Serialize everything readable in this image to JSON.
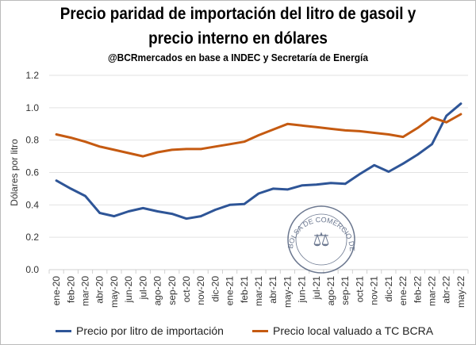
{
  "chart_data": {
    "type": "line",
    "title": "Precio paridad de importación del litro de gasoil y",
    "title_line2": "precio interno en dólares",
    "subtitle": "@BCRmercados en base a INDEC y Secretaría de Energía",
    "xlabel": "",
    "ylabel": "Dólares por litro",
    "ylim": [
      0,
      1.2
    ],
    "yticks": [
      "0.0",
      "0.2",
      "0.4",
      "0.6",
      "0.8",
      "1.0",
      "1.2"
    ],
    "grid": true,
    "legend_position": "bottom",
    "watermark": "BOLSA DE COMERCIO DE ROSARIO",
    "categories": [
      "ene-20",
      "feb-20",
      "mar-20",
      "abr-20",
      "may-20",
      "jun-20",
      "jul-20",
      "ago-20",
      "sep-20",
      "oct-20",
      "nov-20",
      "dic-20",
      "ene-21",
      "feb-21",
      "mar-21",
      "abr-21",
      "may-21",
      "jun-21",
      "jul-21",
      "ago-21",
      "sep-21",
      "oct-21",
      "nov-21",
      "dic-21",
      "ene-22",
      "feb-22",
      "mar-22",
      "abr-22",
      "may-22"
    ],
    "series": [
      {
        "name": "Precio por litro de importación",
        "color": "#2E5597",
        "values": [
          0.55,
          0.5,
          0.455,
          0.35,
          0.33,
          0.36,
          0.38,
          0.36,
          0.345,
          0.315,
          0.33,
          0.37,
          0.4,
          0.405,
          0.47,
          0.5,
          0.495,
          0.52,
          0.525,
          0.535,
          0.53,
          0.59,
          0.645,
          0.605,
          0.655,
          0.71,
          0.775,
          0.95,
          1.025
        ]
      },
      {
        "name": "Precio local valuado a TC BCRA",
        "color": "#C55A11",
        "values": [
          0.835,
          0.815,
          0.79,
          0.76,
          0.74,
          0.72,
          0.7,
          0.725,
          0.74,
          0.745,
          0.745,
          0.76,
          0.775,
          0.79,
          0.83,
          0.865,
          0.9,
          0.89,
          0.88,
          0.87,
          0.86,
          0.855,
          0.845,
          0.835,
          0.82,
          0.875,
          0.94,
          0.91,
          0.96
        ]
      }
    ]
  }
}
